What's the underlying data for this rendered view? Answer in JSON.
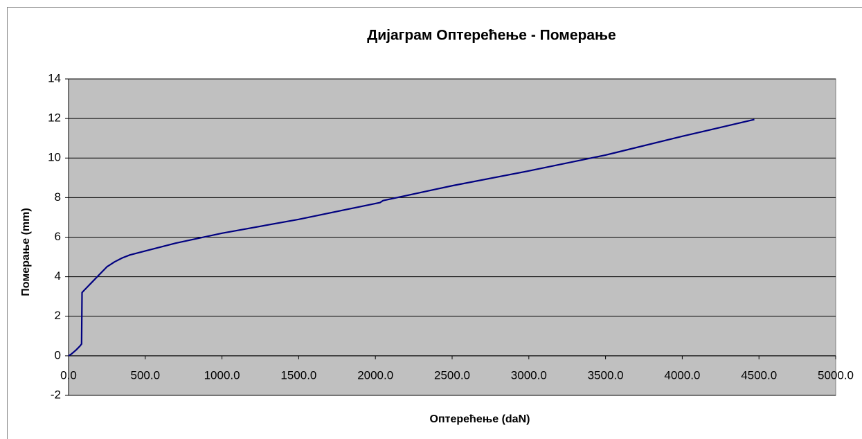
{
  "chart_data": {
    "type": "line",
    "title": "Дијаграм Оптерећење - Померање",
    "x_label": "Оптерећење (daN)",
    "y_label": "Померање (mm)",
    "series": [
      {
        "name": "Померање",
        "color": "#000080",
        "x": [
          0,
          20,
          50,
          75,
          85,
          88,
          100,
          150,
          200,
          250,
          300,
          350,
          400,
          500,
          700,
          1000,
          1500,
          2000,
          2030,
          2050,
          2500,
          3000,
          3500,
          4000,
          4470
        ],
        "values": [
          0,
          0.1,
          0.3,
          0.5,
          0.6,
          3.2,
          3.3,
          3.7,
          4.1,
          4.5,
          4.75,
          4.95,
          5.1,
          5.3,
          5.7,
          6.2,
          6.9,
          7.7,
          7.75,
          7.85,
          8.6,
          9.35,
          10.15,
          11.1,
          11.95
        ]
      }
    ],
    "xlim": [
      0,
      5000
    ],
    "xticks": [
      {
        "value": 0,
        "label": "0.0"
      },
      {
        "value": 500,
        "label": "500.0"
      },
      {
        "value": 1000,
        "label": "1000.0"
      },
      {
        "value": 1500,
        "label": "1500.0"
      },
      {
        "value": 2000,
        "label": "2000.0"
      },
      {
        "value": 2500,
        "label": "2500.0"
      },
      {
        "value": 3000,
        "label": "3000.0"
      },
      {
        "value": 3500,
        "label": "3500.0"
      },
      {
        "value": 4000,
        "label": "4000.0"
      },
      {
        "value": 4500,
        "label": "4500.0"
      },
      {
        "value": 5000,
        "label": "5000.0"
      }
    ],
    "ylim": [
      -2,
      14
    ],
    "yticks": [
      -2,
      0,
      2,
      4,
      6,
      8,
      10,
      12,
      14
    ],
    "grid": true
  }
}
